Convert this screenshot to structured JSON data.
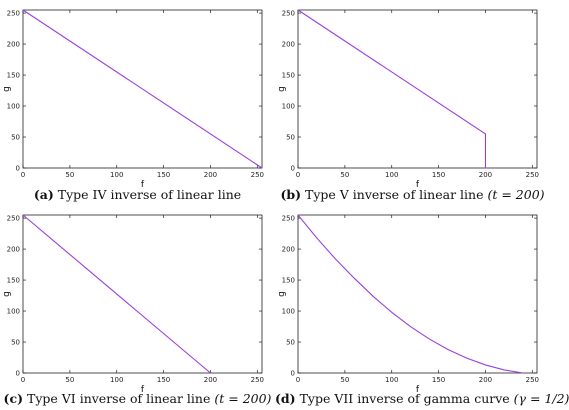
{
  "chart_data": [
    {
      "type": "line",
      "panel_label": "(a)",
      "caption_text": "Type IV inverse of linear line",
      "caption_extra": "",
      "xlabel": "f",
      "ylabel": "g",
      "xlim": [
        0,
        255
      ],
      "ylim": [
        0,
        255
      ],
      "xticks": [
        0,
        50,
        100,
        150,
        200,
        250
      ],
      "yticks": [
        0,
        50,
        100,
        150,
        200,
        250
      ],
      "series_color": "#9b3fe0",
      "x": [
        0,
        255
      ],
      "y": [
        255,
        0
      ]
    },
    {
      "type": "line",
      "panel_label": "(b)",
      "caption_text": "Type V inverse of linear line",
      "caption_extra": "(t = 200)",
      "xlabel": "f",
      "ylabel": "g",
      "xlim": [
        0,
        255
      ],
      "ylim": [
        0,
        255
      ],
      "xticks": [
        0,
        50,
        100,
        150,
        200,
        250
      ],
      "yticks": [
        0,
        50,
        100,
        150,
        200,
        250
      ],
      "series_color": "#9b3fe0",
      "x": [
        0,
        198,
        200,
        200
      ],
      "y": [
        255,
        57,
        55,
        0
      ]
    },
    {
      "type": "line",
      "panel_label": "(c)",
      "caption_text": "Type VI inverse of linear line",
      "caption_extra": "(t = 200)",
      "xlabel": "f",
      "ylabel": "g",
      "xlim": [
        0,
        255
      ],
      "ylim": [
        0,
        255
      ],
      "xticks": [
        0,
        50,
        100,
        150,
        200,
        250
      ],
      "yticks": [
        0,
        50,
        100,
        150,
        200,
        250
      ],
      "series_color": "#9b3fe0",
      "x": [
        0,
        200
      ],
      "y": [
        255,
        0
      ]
    },
    {
      "type": "line",
      "panel_label": "(d)",
      "caption_text": "Type VII inverse of gamma curve",
      "caption_extra": "(γ = 1/2)",
      "xlabel": "f",
      "ylabel": "g",
      "xlim": [
        0,
        255
      ],
      "ylim": [
        0,
        255
      ],
      "xticks": [
        0,
        50,
        100,
        150,
        200,
        250
      ],
      "yticks": [
        0,
        50,
        100,
        150,
        200,
        250
      ],
      "series_color": "#9b3fe0",
      "x": [
        0,
        20,
        40,
        60,
        80,
        100,
        120,
        140,
        160,
        180,
        200,
        220,
        240
      ],
      "y": [
        255,
        218,
        184,
        153,
        124,
        98,
        75,
        55,
        38,
        24,
        13,
        5,
        0
      ]
    }
  ]
}
